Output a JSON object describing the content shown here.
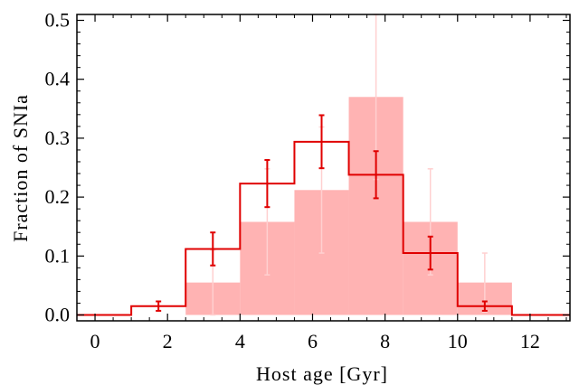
{
  "chart_data": {
    "type": "bar",
    "title": "",
    "xlabel": "Host age [Gyr]",
    "ylabel": "Fraction of SNIa",
    "xlim": [
      -0.5,
      13.1
    ],
    "ylim": [
      -0.01,
      0.51
    ],
    "xticks": [
      0,
      2,
      4,
      6,
      8,
      10,
      12
    ],
    "yticks": [
      0.0,
      0.1,
      0.2,
      0.3,
      0.4,
      0.5
    ],
    "xtick_labels": [
      "0",
      "2",
      "4",
      "6",
      "8",
      "10",
      "12"
    ],
    "ytick_labels": [
      "0.0",
      "0.1",
      "0.2",
      "0.3",
      "0.4",
      "0.5"
    ],
    "grid": false,
    "legend": false,
    "colors": {
      "filled": "#ffb3b3",
      "filled_errorbar": "#ffd0d0",
      "step": "#e00000"
    },
    "series": [
      {
        "style": "filled-histogram",
        "bins": [
          {
            "x0": 2.5,
            "x1": 4.0,
            "value": 0.055,
            "err_low": 0.055,
            "err_high": 0.055
          },
          {
            "x0": 4.0,
            "x1": 5.5,
            "value": 0.158,
            "err_low": 0.09,
            "err_high": 0.09
          },
          {
            "x0": 5.5,
            "x1": 7.0,
            "value": 0.212,
            "err_low": 0.107,
            "err_high": 0.107
          },
          {
            "x0": 7.0,
            "x1": 8.5,
            "value": 0.37,
            "err_low": 0.14,
            "err_high": 0.14
          },
          {
            "x0": 8.5,
            "x1": 10.0,
            "value": 0.158,
            "err_low": 0.09,
            "err_high": 0.09
          },
          {
            "x0": 10.0,
            "x1": 11.5,
            "value": 0.055,
            "err_low": 0.05,
            "err_high": 0.05
          }
        ]
      },
      {
        "style": "step-histogram",
        "bins": [
          {
            "x0": -0.5,
            "x1": 1.0,
            "value": 0.0,
            "err_low": 0,
            "err_high": 0
          },
          {
            "x0": 1.0,
            "x1": 2.5,
            "value": 0.015,
            "err_low": 0.008,
            "err_high": 0.008
          },
          {
            "x0": 2.5,
            "x1": 4.0,
            "value": 0.112,
            "err_low": 0.028,
            "err_high": 0.028
          },
          {
            "x0": 4.0,
            "x1": 5.5,
            "value": 0.223,
            "err_low": 0.04,
            "err_high": 0.04
          },
          {
            "x0": 5.5,
            "x1": 7.0,
            "value": 0.294,
            "err_low": 0.045,
            "err_high": 0.045
          },
          {
            "x0": 7.0,
            "x1": 8.5,
            "value": 0.238,
            "err_low": 0.04,
            "err_high": 0.04
          },
          {
            "x0": 8.5,
            "x1": 10.0,
            "value": 0.105,
            "err_low": 0.028,
            "err_high": 0.028
          },
          {
            "x0": 10.0,
            "x1": 11.5,
            "value": 0.015,
            "err_low": 0.008,
            "err_high": 0.008
          },
          {
            "x0": 11.5,
            "x1": 13.1,
            "value": 0.0,
            "err_low": 0,
            "err_high": 0
          }
        ]
      }
    ]
  }
}
